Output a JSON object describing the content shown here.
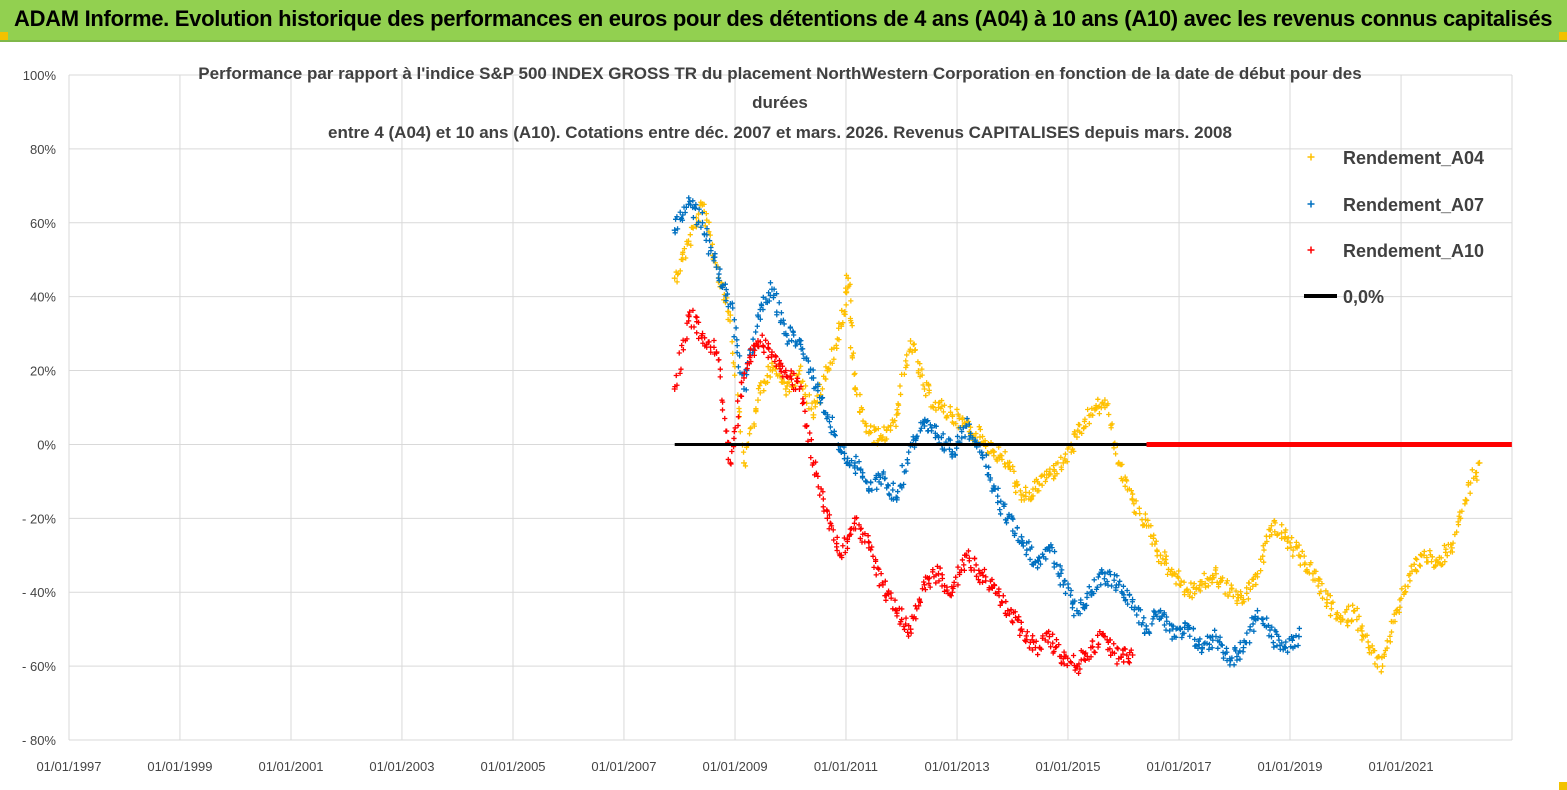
{
  "header": {
    "title": "ADAM Informe. Evolution historique des performances en euros pour des détentions de 4 ans (A04) à 10 ans (A10) avec les revenus connus capitalisés"
  },
  "colors": {
    "banner": "#92d050",
    "A04": "#ffc000",
    "A07": "#0070c0",
    "A10": "#ff0000",
    "zero_line": "#000000",
    "grid": "#d9d9d9"
  },
  "chart_data": {
    "type": "scatter",
    "title_lines": [
      "Performance par rapport à l'indice S&P 500 INDEX GROSS TR  du placement NorthWestern Corporation en fonction de la date de début pour des",
      "durées",
      "entre 4 (A04) et 10 ans (A10). Cotations entre déc. 2007 et mars. 2026. Revenus CAPITALISES depuis mars. 2008"
    ],
    "x_axis": {
      "min": "1997-01-01",
      "max": "2023-01-01",
      "tick_labels": [
        "01/01/1997",
        "01/01/1999",
        "01/01/2001",
        "01/01/2003",
        "01/01/2005",
        "01/01/2007",
        "01/01/2009",
        "01/01/2011",
        "01/01/2013",
        "01/01/2015",
        "01/01/2017",
        "01/01/2019",
        "01/01/2021"
      ]
    },
    "y_axis": {
      "min": -80,
      "max": 100,
      "unit": "%",
      "tick_labels": [
        "100%",
        "80%",
        "60%",
        "40%",
        "20%",
        "0%",
        "- 20%",
        "- 40%",
        "- 60%",
        "- 80%"
      ]
    },
    "grid": "horizontal+vertical",
    "legend_position": "top-right",
    "series": [
      {
        "name": "Rendement_A04",
        "marker": "+",
        "color": "#ffc000",
        "x": [
          "2007-12-01",
          "2008-03-01",
          "2008-06-01",
          "2008-09-01",
          "2008-12-01",
          "2009-03-01",
          "2009-06-01",
          "2009-09-01",
          "2009-12-01",
          "2010-03-01",
          "2010-06-01",
          "2010-09-01",
          "2010-12-01",
          "2011-01-15",
          "2011-03-01",
          "2011-06-01",
          "2011-09-01",
          "2011-12-01",
          "2012-03-01",
          "2012-06-01",
          "2012-09-01",
          "2012-12-01",
          "2013-03-01",
          "2013-06-01",
          "2013-09-01",
          "2013-12-01",
          "2014-03-01",
          "2014-06-01",
          "2014-09-01",
          "2014-12-01",
          "2015-03-01",
          "2015-06-01",
          "2015-09-01",
          "2015-12-01",
          "2016-03-01",
          "2016-06-01",
          "2016-09-01",
          "2016-12-01",
          "2017-03-01",
          "2017-06-01",
          "2017-09-01",
          "2017-12-01",
          "2018-03-01",
          "2018-06-01",
          "2018-09-01",
          "2018-12-01",
          "2019-03-01",
          "2019-06-01",
          "2019-09-01",
          "2019-12-01",
          "2020-03-01",
          "2020-06-01",
          "2020-09-01",
          "2020-12-01",
          "2021-03-01",
          "2021-06-01",
          "2021-09-01",
          "2021-12-01",
          "2022-03-01",
          "2022-06-01"
        ],
        "y": [
          45,
          55,
          65,
          48,
          35,
          -5,
          12,
          22,
          15,
          20,
          8,
          20,
          32,
          45,
          15,
          3,
          2,
          8,
          28,
          15,
          10,
          8,
          5,
          2,
          -2,
          -5,
          -15,
          -12,
          -8,
          -5,
          2,
          8,
          12,
          -5,
          -15,
          -22,
          -30,
          -35,
          -40,
          -38,
          -35,
          -40,
          -42,
          -35,
          -22,
          -25,
          -30,
          -35,
          -42,
          -48,
          -45,
          -55,
          -60,
          -45,
          -35,
          -30,
          -32,
          -28,
          -15,
          -5
        ]
      },
      {
        "name": "Rendement_A07",
        "marker": "+",
        "color": "#0070c0",
        "x": [
          "2007-12-01",
          "2008-03-01",
          "2008-06-01",
          "2008-09-01",
          "2008-12-01",
          "2009-03-01",
          "2009-06-01",
          "2009-09-01",
          "2009-12-01",
          "2010-03-01",
          "2010-06-01",
          "2010-09-01",
          "2010-12-01",
          "2011-03-01",
          "2011-06-01",
          "2011-09-01",
          "2011-12-01",
          "2012-03-01",
          "2012-06-01",
          "2012-09-01",
          "2012-12-01",
          "2013-03-01",
          "2013-06-01",
          "2013-09-01",
          "2013-12-01",
          "2014-03-01",
          "2014-06-01",
          "2014-09-01",
          "2014-12-01",
          "2015-03-01",
          "2015-06-01",
          "2015-09-01",
          "2015-12-01",
          "2016-03-01",
          "2016-06-01",
          "2016-09-01",
          "2016-12-01",
          "2017-03-01",
          "2017-06-01",
          "2017-09-01",
          "2017-12-01",
          "2018-03-01",
          "2018-06-01",
          "2018-09-01",
          "2018-12-01",
          "2019-03-01"
        ],
        "y": [
          58,
          65,
          60,
          48,
          38,
          15,
          35,
          42,
          30,
          28,
          18,
          8,
          -2,
          -5,
          -12,
          -8,
          -15,
          0,
          5,
          2,
          -2,
          5,
          0,
          -12,
          -20,
          -25,
          -32,
          -28,
          -38,
          -45,
          -40,
          -35,
          -38,
          -42,
          -50,
          -45,
          -52,
          -50,
          -55,
          -52,
          -58,
          -55,
          -45,
          -52,
          -55,
          -52
        ]
      },
      {
        "name": "Rendement_A10",
        "marker": "+",
        "color": "#ff0000",
        "x": [
          "2007-12-01",
          "2008-03-01",
          "2008-06-01",
          "2008-09-01",
          "2008-12-01",
          "2009-03-01",
          "2009-06-01",
          "2009-09-01",
          "2009-12-01",
          "2010-03-01",
          "2010-06-01",
          "2010-09-01",
          "2010-12-01",
          "2011-03-01",
          "2011-06-01",
          "2011-09-01",
          "2011-12-01",
          "2012-03-01",
          "2012-06-01",
          "2012-09-01",
          "2012-12-01",
          "2013-03-01",
          "2013-06-01",
          "2013-09-01",
          "2013-12-01",
          "2014-03-01",
          "2014-06-01",
          "2014-09-01",
          "2014-12-01",
          "2015-03-01",
          "2015-06-01",
          "2015-09-01",
          "2015-12-01",
          "2016-03-01"
        ],
        "y": [
          15,
          35,
          30,
          25,
          -5,
          18,
          28,
          25,
          20,
          15,
          -5,
          -20,
          -30,
          -20,
          -28,
          -38,
          -45,
          -50,
          -38,
          -35,
          -40,
          -30,
          -35,
          -38,
          -45,
          -50,
          -55,
          -52,
          -58,
          -60,
          -55,
          -52,
          -58,
          -57
        ]
      },
      {
        "name": "0,0%",
        "type": "line",
        "color": "#000000",
        "x": [
          "2007-12-01",
          "2016-06-01"
        ],
        "y": [
          0,
          0
        ]
      }
    ],
    "overlay_line": {
      "color": "#ff0000",
      "x": [
        "2016-06-01",
        "2022-12-31"
      ],
      "y": [
        0,
        0
      ]
    }
  }
}
